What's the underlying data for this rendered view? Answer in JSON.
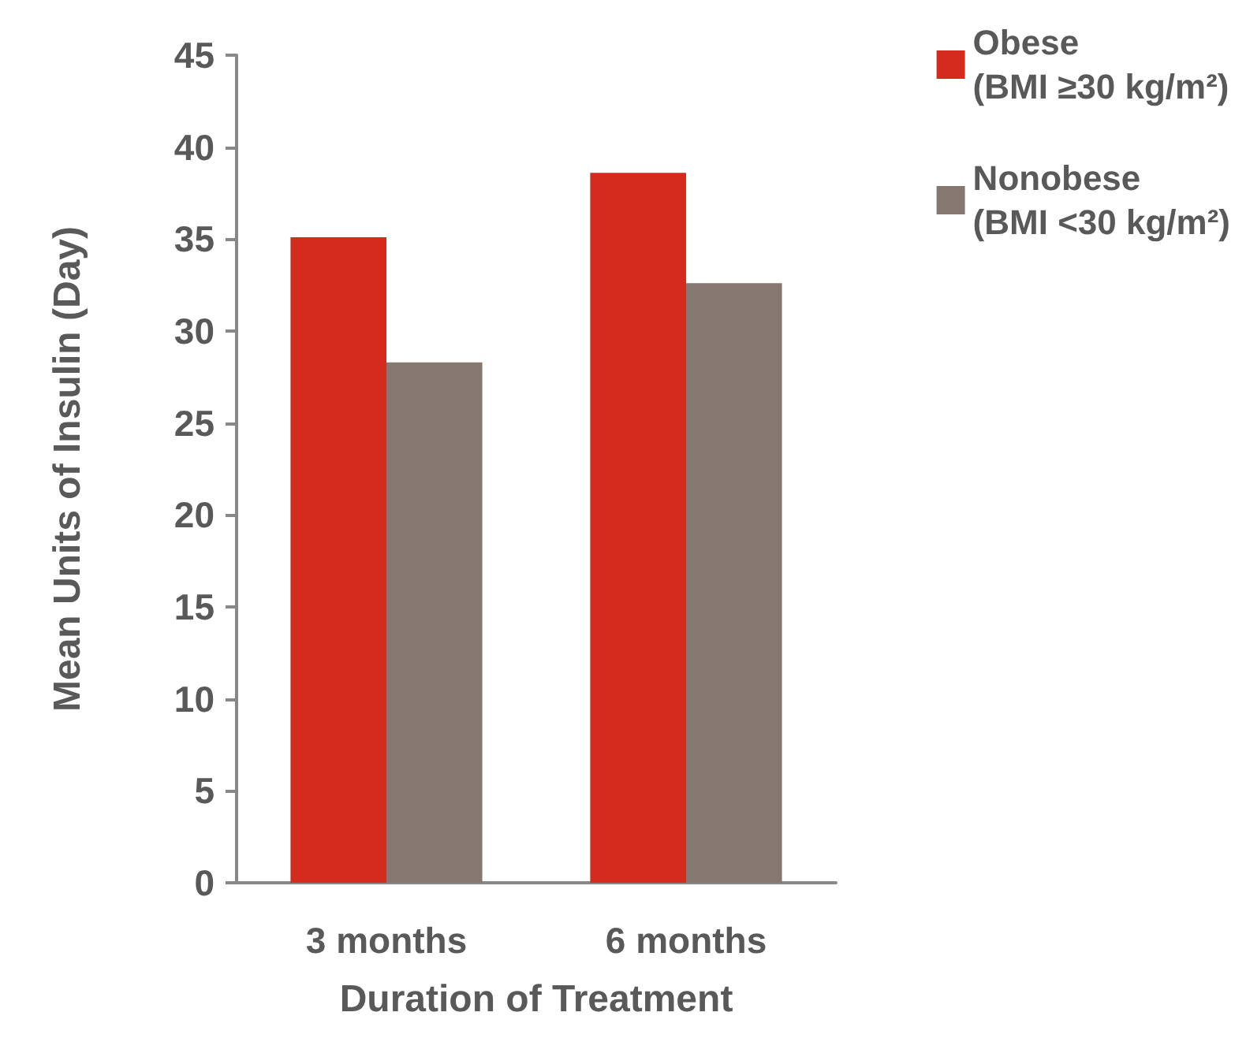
{
  "chart_data": {
    "type": "bar",
    "xlabel": "Duration of Treatment",
    "ylabel": "Mean Units of Insulin (Day)",
    "categories": [
      "3 months",
      "6 months"
    ],
    "series": [
      {
        "name": "Obese\n(BMI ≥30 kg/m²)",
        "color": "#d52b1e",
        "values": [
          35.1,
          38.6
        ]
      },
      {
        "name": "Nonobese\n(BMI <30 kg/m²)",
        "color": "#857870",
        "values": [
          28.3,
          32.6
        ]
      }
    ],
    "ylim": [
      0,
      45
    ],
    "yticks": [
      0,
      5,
      10,
      15,
      20,
      25,
      30,
      35,
      40,
      45
    ],
    "grid": false,
    "legend": "top right"
  }
}
